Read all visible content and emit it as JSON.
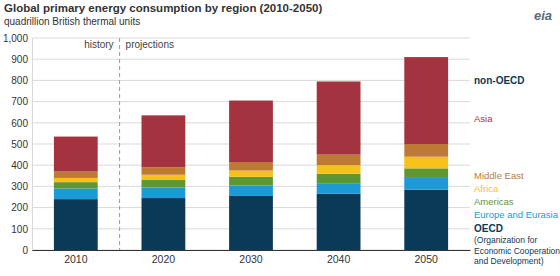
{
  "chart_data": {
    "type": "bar",
    "title": "Global primary energy consumption by region (2010-2050)",
    "subtitle": "quadrillion British thermal units",
    "logo": "eia",
    "period_labels": [
      "history",
      "projections"
    ],
    "group_label": "non-OECD",
    "categories": [
      "2010",
      "2020",
      "2030",
      "2040",
      "2050"
    ],
    "series": [
      {
        "name": "OECD",
        "color": "#0b3a56",
        "values": [
          240,
          245,
          255,
          265,
          285
        ],
        "note": [
          "(Organization for",
          "Economic Cooperation",
          "and Development)"
        ]
      },
      {
        "name": "Europe and Eurasia",
        "color": "#1b9ad6",
        "values": [
          50,
          50,
          50,
          50,
          55
        ]
      },
      {
        "name": "Americas",
        "color": "#5e9732",
        "values": [
          30,
          35,
          40,
          45,
          45
        ]
      },
      {
        "name": "Africa",
        "color": "#f6c21a",
        "values": [
          20,
          25,
          30,
          40,
          55
        ]
      },
      {
        "name": "Middle East",
        "color": "#bd7a35",
        "values": [
          30,
          35,
          40,
          50,
          60
        ]
      },
      {
        "name": "Asia",
        "color": "#a3343f",
        "values": [
          165,
          245,
          290,
          345,
          410
        ]
      }
    ],
    "ylim": [
      0,
      1000
    ],
    "yticks": [
      0,
      100,
      200,
      300,
      400,
      500,
      600,
      700,
      800,
      900,
      {
        "value": 1000,
        "label": "1,000"
      }
    ],
    "stacked": true,
    "grid": true,
    "legend": "right"
  }
}
